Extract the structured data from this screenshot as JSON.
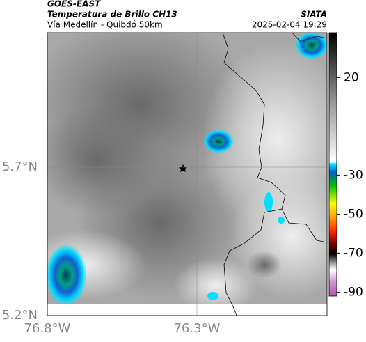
{
  "header": {
    "source": "GOES-EAST",
    "title": "Temperatura de Brillo CH13",
    "subtitle": "Vía Medellín - Quibdó 50km",
    "agency": "SIATA",
    "datetime": "2025-02-04 19:29"
  },
  "map": {
    "xlim": [
      -76.8,
      -75.865
    ],
    "ylim": [
      5.2,
      6.153
    ],
    "xticks": [
      {
        "value": -76.8,
        "label": "76.8°W"
      },
      {
        "value": -76.3,
        "label": "76.3°W"
      }
    ],
    "yticks": [
      {
        "value": 5.7,
        "label": "5.7°N"
      },
      {
        "value": 5.2,
        "label": "5.2°N"
      }
    ],
    "grid": true
  },
  "colorbar": {
    "clim": [
      -92,
      43
    ],
    "ticks": [
      20,
      -30,
      -50,
      -70,
      -90
    ]
  }
}
